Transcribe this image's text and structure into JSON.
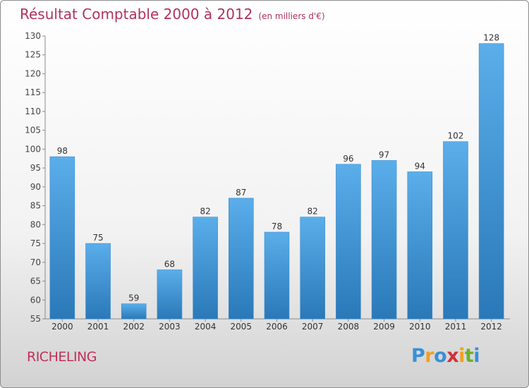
{
  "header": {
    "title": "Résultat Comptable 2000 à 2012",
    "unit": "(en milliers d'€)"
  },
  "footer": {
    "commune": "RICHELING",
    "logo_letters": [
      "P",
      "r",
      "o",
      "x",
      "i",
      "t",
      "i"
    ],
    "logo_colors": [
      "#3a8fd8",
      "#f0a020",
      "#3a8fd8",
      "#d0303a",
      "#f0a020",
      "#6bb02c",
      "#3a8fd8"
    ]
  },
  "chart_data": {
    "type": "bar",
    "title": "Résultat Comptable 2000 à 2012",
    "xlabel": "",
    "ylabel": "",
    "categories": [
      "2000",
      "2001",
      "2002",
      "2003",
      "2004",
      "2005",
      "2006",
      "2007",
      "2008",
      "2009",
      "2010",
      "2011",
      "2012"
    ],
    "values": [
      98,
      75,
      59,
      68,
      82,
      87,
      78,
      82,
      96,
      97,
      94,
      102,
      128
    ],
    "ylim": [
      55,
      130
    ],
    "yticks": [
      55,
      60,
      65,
      70,
      75,
      80,
      85,
      90,
      95,
      100,
      105,
      110,
      115,
      120,
      125,
      130
    ],
    "grid": false,
    "bar_color_top": "#5aaeea",
    "bar_color_bottom": "#2a78b8"
  }
}
